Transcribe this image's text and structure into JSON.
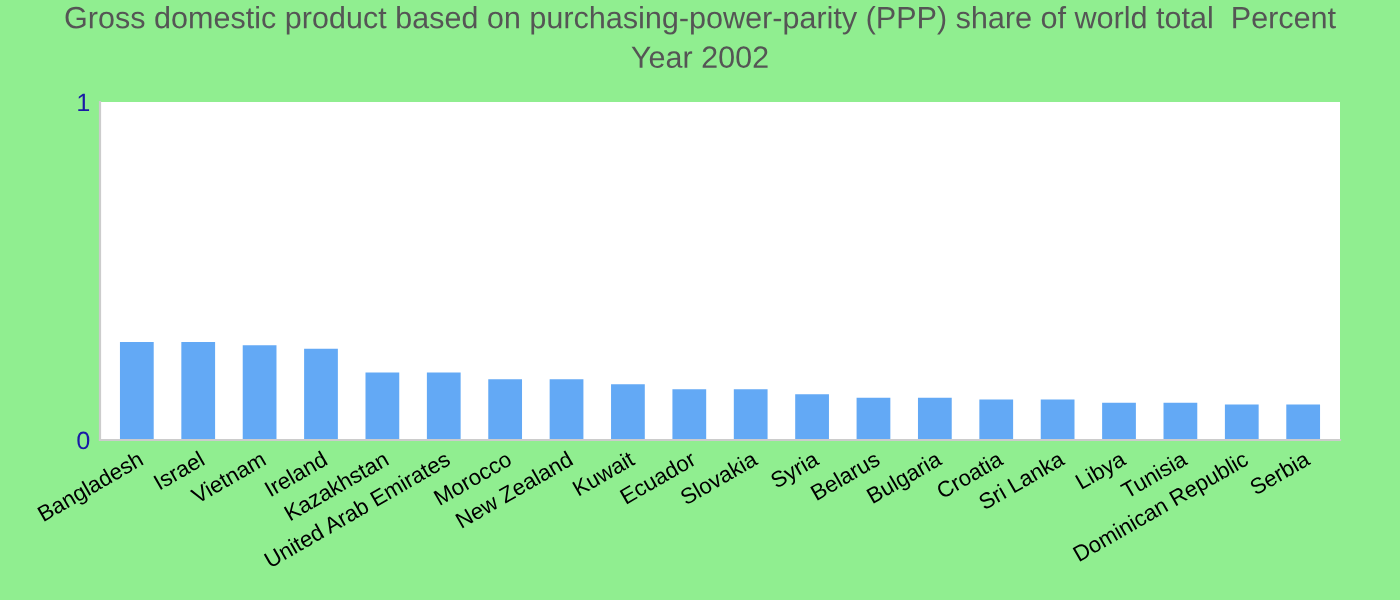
{
  "chart_data": {
    "type": "bar",
    "title": "Gross domestic product based on purchasing-power-parity (PPP) share of world total  Percent\nYear 2002",
    "categories": [
      "Bangladesh",
      "Israel",
      "Vietnam",
      "Ireland",
      "Kazakhstan",
      "United Arab Emirates",
      "Morocco",
      "New Zealand",
      "Kuwait",
      "Ecuador",
      "Slovakia",
      "Syria",
      "Belarus",
      "Bulgaria",
      "Croatia",
      "Sri Lanka",
      "Libya",
      "Tunisia",
      "Dominican Republic",
      "Serbia"
    ],
    "values": [
      0.29,
      0.29,
      0.28,
      0.27,
      0.2,
      0.2,
      0.18,
      0.18,
      0.165,
      0.15,
      0.15,
      0.135,
      0.125,
      0.125,
      0.12,
      0.12,
      0.11,
      0.11,
      0.105,
      0.105
    ],
    "color": "#63a9f5",
    "ylim": [
      0,
      1
    ],
    "yticks": [
      0,
      1
    ],
    "grid": false,
    "legend": false
  }
}
